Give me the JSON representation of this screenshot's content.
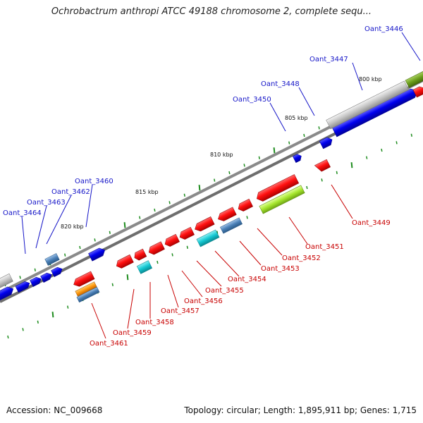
{
  "title": "Ochrobactrum anthropi ATCC 49188 chromosome 2, complete sequ...",
  "footer": {
    "accession": "Accession: NC_009668",
    "summary": "Topology: circular; Length: 1,895,911 bp; Genes: 1,715"
  },
  "scale_labels": [
    "800 kbp",
    "805 kbp",
    "810 kbp",
    "815 kbp",
    "820 kbp"
  ],
  "top_labels": [
    "Oant_3446",
    "Oant_3447",
    "Oant_3448",
    "Oant_3450",
    "Oant_3460",
    "Oant_3462",
    "Oant_3463",
    "Oant_3464"
  ],
  "bottom_labels": [
    "Oant_3449",
    "Oant_3451",
    "Oant_3452",
    "Oant_3453",
    "Oant_3454",
    "Oant_3455",
    "Oant_3456",
    "Oant_3457",
    "Oant_3458",
    "Oant_3459",
    "Oant_3461"
  ],
  "colors": {
    "top_label": "#1515c8",
    "bottom_label": "#c80000",
    "forward_gene": "#0000e6",
    "reverse_gene": "#ff0000",
    "cyan_gene": "#10c8d0",
    "steel_gene": "#5080b8",
    "gray_gene": "#c8c8c8",
    "olive_gene": "#6c9e1c",
    "lime_gene": "#a6e62e",
    "orange_gene": "#ff9a10",
    "tick": "#1e8c1e",
    "backbone": "#8a8a8a"
  }
}
